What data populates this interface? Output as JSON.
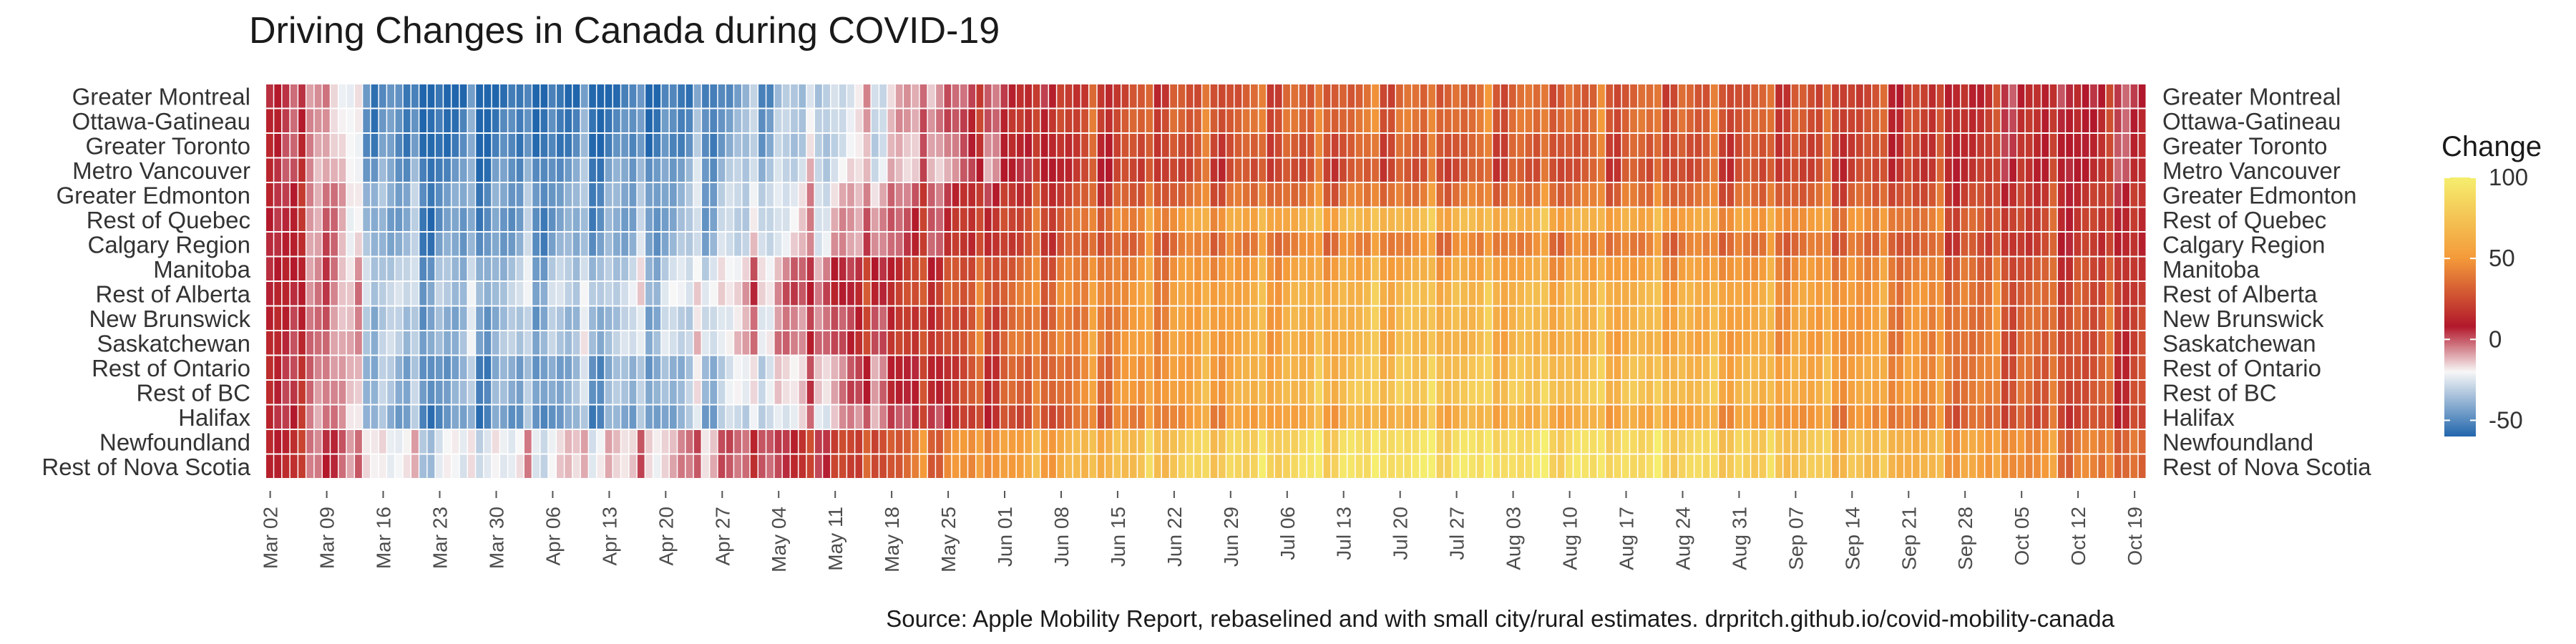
{
  "chart_data": {
    "type": "heatmap",
    "title": "Driving Changes in Canada during COVID-19",
    "caption": "Source: Apple Mobility Report, rebaselined and with small city/rural estimates. drpritch.github.io/covid-mobility-canada",
    "xlabel": "",
    "ylabel": "",
    "x_start_date": "2020-03-02",
    "x_end_date": "2020-10-20",
    "x_tick_labels": [
      "Mar 02",
      "Mar 09",
      "Mar 16",
      "Mar 23",
      "Mar 30",
      "Apr 06",
      "Apr 13",
      "Apr 20",
      "Apr 27",
      "May 04",
      "May 11",
      "May 18",
      "May 25",
      "Jun 01",
      "Jun 08",
      "Jun 15",
      "Jun 22",
      "Jun 29",
      "Jul 06",
      "Jul 13",
      "Jul 20",
      "Jul 27",
      "Aug 03",
      "Aug 10",
      "Aug 17",
      "Aug 24",
      "Aug 31",
      "Sep 07",
      "Sep 14",
      "Sep 21",
      "Sep 28",
      "Oct 05",
      "Oct 12",
      "Oct 19"
    ],
    "regions": [
      "Greater Montreal",
      "Ottawa-Gatineau",
      "Greater Toronto",
      "Metro Vancouver",
      "Greater Edmonton",
      "Rest of Quebec",
      "Calgary Region",
      "Manitoba",
      "Rest of Alberta",
      "New Brunswick",
      "Saskatchewan",
      "Rest of Ontario",
      "Rest of BC",
      "Halifax",
      "Newfoundland",
      "Rest of Nova Scotia"
    ],
    "legend": {
      "title": "Change",
      "placement": "right",
      "ticks": [
        100,
        50,
        0,
        -50
      ],
      "range": [
        -60,
        100
      ],
      "colors": {
        "low": "#2166ac",
        "light": "#f7f7f7",
        "dark": "#b2182b",
        "mid": "#f49a3a",
        "high": "#f5ee6e"
      }
    },
    "series": [
      {
        "name": "Greater Montreal",
        "keyframes": [
          [
            0,
            5
          ],
          [
            7,
            -5
          ],
          [
            13,
            -45
          ],
          [
            19,
            -60
          ],
          [
            50,
            -55
          ],
          [
            62,
            -40
          ],
          [
            74,
            -20
          ],
          [
            85,
            0
          ],
          [
            100,
            20
          ],
          [
            115,
            28
          ],
          [
            130,
            32
          ],
          [
            150,
            35
          ],
          [
            180,
            30
          ],
          [
            200,
            22
          ],
          [
            215,
            12
          ],
          [
            232,
            8
          ]
        ]
      },
      {
        "name": "Ottawa-Gatineau",
        "keyframes": [
          [
            0,
            8
          ],
          [
            7,
            -5
          ],
          [
            13,
            -45
          ],
          [
            19,
            -55
          ],
          [
            50,
            -50
          ],
          [
            62,
            -35
          ],
          [
            74,
            -20
          ],
          [
            85,
            5
          ],
          [
            100,
            25
          ],
          [
            115,
            33
          ],
          [
            140,
            38
          ],
          [
            170,
            35
          ],
          [
            200,
            25
          ],
          [
            215,
            15
          ],
          [
            232,
            10
          ]
        ]
      },
      {
        "name": "Greater Toronto",
        "keyframes": [
          [
            0,
            8
          ],
          [
            7,
            -5
          ],
          [
            13,
            -45
          ],
          [
            19,
            -55
          ],
          [
            50,
            -50
          ],
          [
            62,
            -35
          ],
          [
            74,
            -22
          ],
          [
            85,
            0
          ],
          [
            100,
            20
          ],
          [
            115,
            28
          ],
          [
            140,
            32
          ],
          [
            170,
            30
          ],
          [
            200,
            22
          ],
          [
            215,
            15
          ],
          [
            232,
            10
          ]
        ]
      },
      {
        "name": "Metro Vancouver",
        "keyframes": [
          [
            0,
            8
          ],
          [
            7,
            -5
          ],
          [
            13,
            -40
          ],
          [
            19,
            -50
          ],
          [
            50,
            -42
          ],
          [
            62,
            -30
          ],
          [
            74,
            -18
          ],
          [
            85,
            -5
          ],
          [
            100,
            18
          ],
          [
            115,
            25
          ],
          [
            140,
            28
          ],
          [
            170,
            28
          ],
          [
            200,
            22
          ],
          [
            215,
            15
          ],
          [
            232,
            10
          ]
        ]
      },
      {
        "name": "Greater Edmonton",
        "keyframes": [
          [
            0,
            10
          ],
          [
            7,
            0
          ],
          [
            13,
            -35
          ],
          [
            19,
            -45
          ],
          [
            50,
            -40
          ],
          [
            62,
            -25
          ],
          [
            74,
            -10
          ],
          [
            85,
            10
          ],
          [
            100,
            25
          ],
          [
            115,
            35
          ],
          [
            140,
            40
          ],
          [
            170,
            38
          ],
          [
            200,
            30
          ],
          [
            215,
            20
          ],
          [
            232,
            15
          ]
        ]
      },
      {
        "name": "Rest of Quebec",
        "keyframes": [
          [
            0,
            10
          ],
          [
            7,
            0
          ],
          [
            13,
            -38
          ],
          [
            19,
            -48
          ],
          [
            50,
            -40
          ],
          [
            62,
            -25
          ],
          [
            74,
            -5
          ],
          [
            85,
            15
          ],
          [
            100,
            35
          ],
          [
            115,
            55
          ],
          [
            140,
            70
          ],
          [
            170,
            60
          ],
          [
            200,
            45
          ],
          [
            215,
            25
          ],
          [
            232,
            15
          ]
        ]
      },
      {
        "name": "Calgary Region",
        "keyframes": [
          [
            0,
            10
          ],
          [
            7,
            0
          ],
          [
            13,
            -35
          ],
          [
            19,
            -45
          ],
          [
            50,
            -38
          ],
          [
            62,
            -22
          ],
          [
            74,
            -5
          ],
          [
            85,
            15
          ],
          [
            100,
            30
          ],
          [
            115,
            40
          ],
          [
            140,
            45
          ],
          [
            170,
            42
          ],
          [
            200,
            35
          ],
          [
            215,
            22
          ],
          [
            232,
            15
          ]
        ]
      },
      {
        "name": "Manitoba",
        "keyframes": [
          [
            0,
            10
          ],
          [
            7,
            0
          ],
          [
            13,
            -28
          ],
          [
            19,
            -38
          ],
          [
            50,
            -30
          ],
          [
            62,
            -10
          ],
          [
            74,
            10
          ],
          [
            85,
            25
          ],
          [
            100,
            40
          ],
          [
            115,
            50
          ],
          [
            140,
            60
          ],
          [
            170,
            55
          ],
          [
            200,
            45
          ],
          [
            215,
            30
          ],
          [
            232,
            20
          ]
        ]
      },
      {
        "name": "Rest of Alberta",
        "keyframes": [
          [
            0,
            10
          ],
          [
            7,
            0
          ],
          [
            13,
            -25
          ],
          [
            19,
            -35
          ],
          [
            50,
            -25
          ],
          [
            62,
            -5
          ],
          [
            74,
            15
          ],
          [
            85,
            30
          ],
          [
            100,
            45
          ],
          [
            115,
            55
          ],
          [
            140,
            70
          ],
          [
            170,
            65
          ],
          [
            200,
            50
          ],
          [
            215,
            35
          ],
          [
            232,
            22
          ]
        ]
      },
      {
        "name": "New Brunswick",
        "keyframes": [
          [
            0,
            10
          ],
          [
            7,
            0
          ],
          [
            13,
            -30
          ],
          [
            19,
            -40
          ],
          [
            50,
            -32
          ],
          [
            62,
            -12
          ],
          [
            74,
            8
          ],
          [
            85,
            25
          ],
          [
            100,
            40
          ],
          [
            115,
            55
          ],
          [
            140,
            70
          ],
          [
            170,
            65
          ],
          [
            200,
            50
          ],
          [
            215,
            35
          ],
          [
            232,
            25
          ]
        ]
      },
      {
        "name": "Saskatchewan",
        "keyframes": [
          [
            0,
            10
          ],
          [
            7,
            0
          ],
          [
            13,
            -28
          ],
          [
            19,
            -38
          ],
          [
            50,
            -28
          ],
          [
            62,
            -8
          ],
          [
            74,
            12
          ],
          [
            85,
            28
          ],
          [
            100,
            45
          ],
          [
            115,
            55
          ],
          [
            140,
            68
          ],
          [
            170,
            62
          ],
          [
            200,
            50
          ],
          [
            215,
            35
          ],
          [
            232,
            22
          ]
        ]
      },
      {
        "name": "Rest of Ontario",
        "keyframes": [
          [
            0,
            10
          ],
          [
            7,
            0
          ],
          [
            13,
            -32
          ],
          [
            19,
            -45
          ],
          [
            50,
            -38
          ],
          [
            62,
            -20
          ],
          [
            74,
            0
          ],
          [
            85,
            20
          ],
          [
            100,
            40
          ],
          [
            115,
            55
          ],
          [
            140,
            75
          ],
          [
            170,
            70
          ],
          [
            200,
            55
          ],
          [
            215,
            35
          ],
          [
            232,
            22
          ]
        ]
      },
      {
        "name": "Rest of BC",
        "keyframes": [
          [
            0,
            10
          ],
          [
            7,
            0
          ],
          [
            13,
            -32
          ],
          [
            19,
            -42
          ],
          [
            50,
            -35
          ],
          [
            62,
            -18
          ],
          [
            74,
            2
          ],
          [
            85,
            22
          ],
          [
            100,
            42
          ],
          [
            115,
            58
          ],
          [
            140,
            80
          ],
          [
            170,
            75
          ],
          [
            200,
            55
          ],
          [
            215,
            35
          ],
          [
            232,
            22
          ]
        ]
      },
      {
        "name": "Halifax",
        "keyframes": [
          [
            0,
            10
          ],
          [
            7,
            0
          ],
          [
            13,
            -35
          ],
          [
            19,
            -48
          ],
          [
            50,
            -40
          ],
          [
            62,
            -25
          ],
          [
            74,
            -5
          ],
          [
            85,
            15
          ],
          [
            100,
            35
          ],
          [
            115,
            50
          ],
          [
            140,
            65
          ],
          [
            170,
            60
          ],
          [
            200,
            45
          ],
          [
            215,
            30
          ],
          [
            232,
            20
          ]
        ]
      },
      {
        "name": "Newfoundland",
        "keyframes": [
          [
            0,
            15
          ],
          [
            7,
            5
          ],
          [
            13,
            -15
          ],
          [
            19,
            -25
          ],
          [
            50,
            -10
          ],
          [
            62,
            5
          ],
          [
            74,
            25
          ],
          [
            85,
            45
          ],
          [
            100,
            65
          ],
          [
            115,
            80
          ],
          [
            140,
            92
          ],
          [
            170,
            88
          ],
          [
            200,
            70
          ],
          [
            215,
            50
          ],
          [
            232,
            35
          ]
        ]
      },
      {
        "name": "Rest of Nova Scotia",
        "keyframes": [
          [
            0,
            15
          ],
          [
            7,
            5
          ],
          [
            13,
            -15
          ],
          [
            19,
            -25
          ],
          [
            50,
            -10
          ],
          [
            62,
            5
          ],
          [
            74,
            25
          ],
          [
            85,
            45
          ],
          [
            100,
            65
          ],
          [
            115,
            82
          ],
          [
            140,
            95
          ],
          [
            170,
            90
          ],
          [
            200,
            70
          ],
          [
            215,
            50
          ],
          [
            232,
            35
          ]
        ]
      }
    ]
  }
}
